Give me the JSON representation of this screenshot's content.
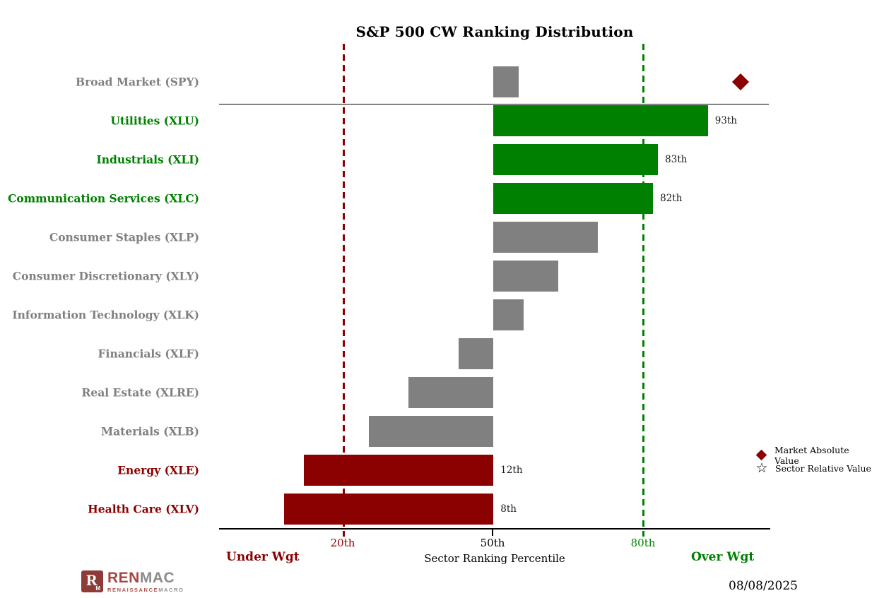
{
  "title": "S&P 500 CW Ranking Distribution",
  "date": "08/08/2025",
  "colors": {
    "over": "#008000",
    "under": "#8b0000",
    "neutral": "#808080",
    "marker": "#8b0000"
  },
  "axis": {
    "xlabel": "Sector Ranking Percentile",
    "left_caption": "Under Wgt",
    "right_caption": "Over Wgt",
    "ticks": [
      {
        "label": "20th",
        "value": 20,
        "color": "#8b0000"
      },
      {
        "label": "50th",
        "value": 50,
        "color": "#000000"
      },
      {
        "label": "80th",
        "value": 80,
        "color": "#008000"
      }
    ]
  },
  "legend": [
    {
      "icon": "diamond-icon",
      "label": "Market Absolute Value"
    },
    {
      "icon": "star-icon",
      "label": "Sector Relative Value"
    }
  ],
  "logo": {
    "mark": "R",
    "mark_sub": "M",
    "wordmark_primary": "REN",
    "wordmark_secondary": "MAC",
    "subtitle_primary": "RENAISSANCE",
    "subtitle_secondary": "MACRO"
  },
  "chart_data": {
    "type": "bar",
    "orientation": "horizontal",
    "baseline": 50,
    "xlim": [
      -5,
      105.5
    ],
    "thresholds": {
      "underweight": 20,
      "overweight": 80
    },
    "grid": false,
    "legend_position": "right",
    "rows": [
      {
        "label": "Broad Market (SPY)",
        "start": 50,
        "end": 55,
        "color": "neutral",
        "value_label": null,
        "marker": {
          "type": "diamond",
          "value": 99.5,
          "meaning": "Market Absolute Value"
        }
      },
      {
        "label": "Utilities (XLU)",
        "start": 50,
        "end": 93,
        "color": "over",
        "value_label": "93th"
      },
      {
        "label": "Industrials (XLI)",
        "start": 50,
        "end": 83,
        "color": "over",
        "value_label": "83th"
      },
      {
        "label": "Communication Services (XLC)",
        "start": 50,
        "end": 82,
        "color": "over",
        "value_label": "82th"
      },
      {
        "label": "Consumer Staples (XLP)",
        "start": 50,
        "end": 71,
        "color": "neutral",
        "value_label": null
      },
      {
        "label": "Consumer Discretionary (XLY)",
        "start": 50,
        "end": 63,
        "color": "neutral",
        "value_label": null
      },
      {
        "label": "Information Technology (XLK)",
        "start": 50,
        "end": 56,
        "color": "neutral",
        "value_label": null
      },
      {
        "label": "Financials (XLF)",
        "start": 43,
        "end": 50,
        "color": "neutral",
        "value_label": null
      },
      {
        "label": "Real Estate (XLRE)",
        "start": 33,
        "end": 50,
        "color": "neutral",
        "value_label": null
      },
      {
        "label": "Materials (XLB)",
        "start": 25,
        "end": 50,
        "color": "neutral",
        "value_label": null
      },
      {
        "label": "Energy (XLE)",
        "start": 12,
        "end": 50,
        "color": "under",
        "value_label": "12th"
      },
      {
        "label": "Health Care (XLV)",
        "start": 8,
        "end": 50,
        "color": "under",
        "value_label": "8th"
      }
    ]
  }
}
